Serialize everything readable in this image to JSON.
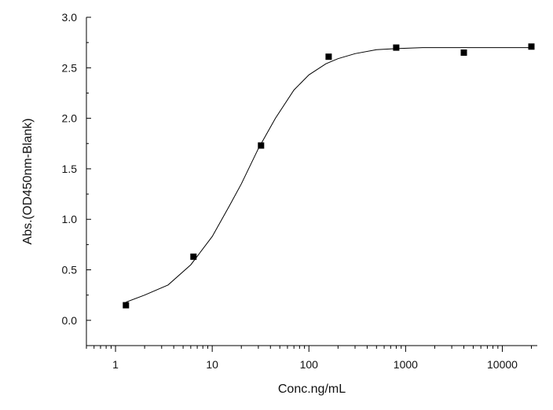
{
  "chart_data": {
    "type": "scatter",
    "title": "",
    "xlabel": "Conc.ng/mL",
    "ylabel": "Abs.(OD450nm-Blank)",
    "x_scale": "log",
    "xlim": [
      0.5,
      23000
    ],
    "ylim": [
      -0.25,
      3.0
    ],
    "x_ticks": [
      1,
      10,
      100,
      1000,
      10000
    ],
    "x_tick_labels": [
      "1",
      "10",
      "100",
      "1000",
      "10000"
    ],
    "y_ticks": [
      0.0,
      0.5,
      1.0,
      1.5,
      2.0,
      2.5,
      3.0
    ],
    "y_tick_labels": [
      "0.0",
      "0.5",
      "1.0",
      "1.5",
      "2.0",
      "2.5",
      "3.0"
    ],
    "grid": false,
    "series": [
      {
        "kind": "points",
        "marker": "square",
        "x": [
          1.28,
          6.4,
          32,
          160,
          800,
          4000,
          20000
        ],
        "y": [
          0.15,
          0.63,
          1.73,
          2.61,
          2.7,
          2.65,
          2.71
        ]
      },
      {
        "kind": "fit-curve",
        "x": [
          1.28,
          2,
          3.5,
          6,
          10,
          15,
          20,
          30,
          45,
          70,
          100,
          150,
          200,
          300,
          500,
          800,
          1500,
          3000,
          6000,
          12000,
          20000
        ],
        "y": [
          0.18,
          0.25,
          0.35,
          0.55,
          0.83,
          1.13,
          1.35,
          1.7,
          2.0,
          2.28,
          2.43,
          2.54,
          2.59,
          2.64,
          2.68,
          2.69,
          2.7,
          2.7,
          2.7,
          2.7,
          2.7
        ]
      }
    ]
  }
}
